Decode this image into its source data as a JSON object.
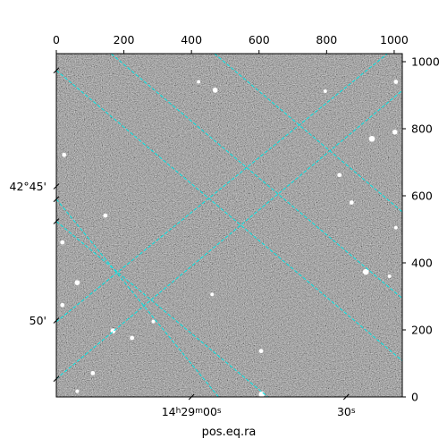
{
  "chart_data": {
    "type": "image",
    "xlabel": "pos.eq.ra",
    "ylabel": "",
    "pixel_x_axis": {
      "range": [
        0,
        1024
      ],
      "ticks": [
        0,
        200,
        400,
        600,
        800,
        1000
      ],
      "labels": [
        "0",
        "200",
        "400",
        "600",
        "800",
        "1000"
      ]
    },
    "pixel_y_axis": {
      "range": [
        0,
        1024
      ],
      "ticks": [
        0,
        200,
        400,
        600,
        800,
        1000
      ],
      "labels": [
        "0",
        "200",
        "400",
        "600",
        "800",
        "1000"
      ]
    },
    "ra_ticks": [
      {
        "label": "14h29m00s",
        "x": 400,
        "y": 0
      },
      {
        "label": "30s",
        "x": 858,
        "y": 0
      }
    ],
    "dec_ticks": [
      {
        "label": "42°45'",
        "x": 0,
        "y": 628
      },
      {
        "label": "50'",
        "x": 0,
        "y": 228
      }
    ],
    "grid": true,
    "grid_color": "#00e5e5",
    "frame_color": "#000000",
    "background": "grayscale noise (star field)",
    "grid_lines": [
      [
        [
          0,
          974
        ],
        [
          1024,
          108
        ]
      ],
      [
        [
          0,
          524
        ],
        [
          626,
          0
        ]
      ],
      [
        [
          0,
          54
        ],
        [
          1024,
          914
        ]
      ],
      [
        [
          0,
          590
        ],
        [
          480,
          0
        ]
      ],
      [
        [
          0,
          224
        ],
        [
          980,
          1024
        ]
      ],
      [
        [
          468,
          1024
        ],
        [
          1024,
          552
        ]
      ],
      [
        [
          162,
          1024
        ],
        [
          1024,
          294
        ]
      ],
      [
        [
          0,
          1024
        ],
        [
          0,
          1024
        ]
      ]
    ],
    "stars": [
      [
        470,
        915,
        5
      ],
      [
        934,
        770,
        6
      ],
      [
        1002,
        790,
        5
      ],
      [
        1005,
        940,
        4
      ],
      [
        23,
        722,
        4
      ],
      [
        838,
        662,
        4
      ],
      [
        421,
        940,
        3
      ],
      [
        874,
        580,
        4
      ],
      [
        145,
        541,
        4
      ],
      [
        18,
        461,
        4
      ],
      [
        916,
        373,
        6
      ],
      [
        62,
        341,
        5
      ],
      [
        18,
        274,
        4
      ],
      [
        168,
        197,
        5
      ],
      [
        224,
        176,
        4
      ],
      [
        287,
        225,
        3
      ],
      [
        606,
        137,
        4
      ],
      [
        608,
        8,
        6
      ],
      [
        796,
        912,
        3
      ],
      [
        986,
        360,
        3
      ],
      [
        461,
        306,
        3
      ],
      [
        108,
        71,
        4
      ],
      [
        62,
        17,
        3
      ],
      [
        1005,
        505,
        3
      ]
    ]
  }
}
